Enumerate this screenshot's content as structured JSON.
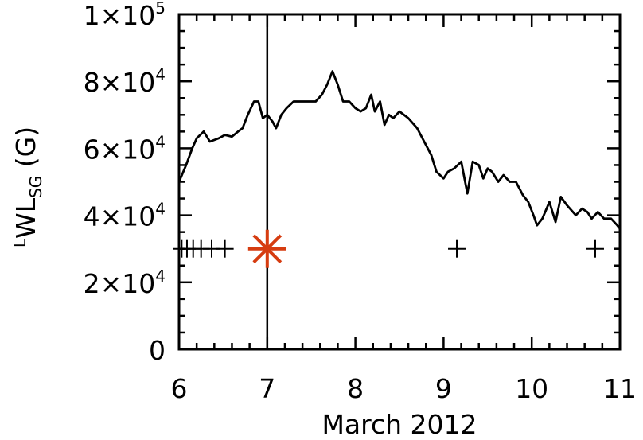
{
  "chart_data": {
    "type": "line",
    "xlabel": "March 2012",
    "ylabel": {
      "base": "WL",
      "pre_sup": "L",
      "sub": "SG",
      "unit": "(G)"
    },
    "xlim": [
      6,
      11
    ],
    "ylim": [
      0,
      100000
    ],
    "x_ticks": [
      {
        "value": 6,
        "label": "6"
      },
      {
        "value": 7,
        "label": "7"
      },
      {
        "value": 8,
        "label": "8"
      },
      {
        "value": 9,
        "label": "9"
      },
      {
        "value": 10,
        "label": "10"
      },
      {
        "value": 11,
        "label": "11"
      }
    ],
    "y_ticks": [
      {
        "value": 0,
        "mant": "0",
        "exp": ""
      },
      {
        "value": 20000,
        "mant": "2×10",
        "exp": "4"
      },
      {
        "value": 40000,
        "mant": "4×10",
        "exp": "4"
      },
      {
        "value": 60000,
        "mant": "6×10",
        "exp": "4"
      },
      {
        "value": 80000,
        "mant": "8×10",
        "exp": "4"
      },
      {
        "value": 100000,
        "mant": "1×10",
        "exp": "5"
      }
    ],
    "series": [
      {
        "color": "#000000",
        "points": [
          [
            6.0,
            50000
          ],
          [
            6.08,
            55000
          ],
          [
            6.15,
            60000
          ],
          [
            6.2,
            63000
          ],
          [
            6.28,
            65000
          ],
          [
            6.35,
            62000
          ],
          [
            6.45,
            63000
          ],
          [
            6.52,
            64000
          ],
          [
            6.6,
            63500
          ],
          [
            6.67,
            65000
          ],
          [
            6.72,
            66000
          ],
          [
            6.78,
            70000
          ],
          [
            6.85,
            74000
          ],
          [
            6.9,
            74000
          ],
          [
            6.95,
            69000
          ],
          [
            7.0,
            70000
          ],
          [
            7.06,
            68000
          ],
          [
            7.1,
            66000
          ],
          [
            7.16,
            70000
          ],
          [
            7.22,
            72000
          ],
          [
            7.3,
            74000
          ],
          [
            7.45,
            74000
          ],
          [
            7.55,
            74000
          ],
          [
            7.62,
            76000
          ],
          [
            7.68,
            79000
          ],
          [
            7.74,
            83000
          ],
          [
            7.8,
            79000
          ],
          [
            7.86,
            74000
          ],
          [
            7.93,
            74000
          ],
          [
            8.0,
            72000
          ],
          [
            8.06,
            71000
          ],
          [
            8.12,
            72000
          ],
          [
            8.18,
            76000
          ],
          [
            8.22,
            71000
          ],
          [
            8.28,
            74000
          ],
          [
            8.33,
            67000
          ],
          [
            8.38,
            70000
          ],
          [
            8.43,
            69000
          ],
          [
            8.5,
            71000
          ],
          [
            8.6,
            69000
          ],
          [
            8.7,
            66000
          ],
          [
            8.78,
            62000
          ],
          [
            8.86,
            58000
          ],
          [
            8.92,
            53000
          ],
          [
            9.0,
            51000
          ],
          [
            9.05,
            53000
          ],
          [
            9.12,
            54000
          ],
          [
            9.2,
            56000
          ],
          [
            9.27,
            46500
          ],
          [
            9.33,
            56000
          ],
          [
            9.4,
            55000
          ],
          [
            9.45,
            51000
          ],
          [
            9.5,
            54000
          ],
          [
            9.55,
            53000
          ],
          [
            9.62,
            50000
          ],
          [
            9.68,
            52000
          ],
          [
            9.75,
            50000
          ],
          [
            9.82,
            50000
          ],
          [
            9.9,
            46000
          ],
          [
            9.96,
            44000
          ],
          [
            10.02,
            40000
          ],
          [
            10.06,
            37000
          ],
          [
            10.12,
            39000
          ],
          [
            10.2,
            44000
          ],
          [
            10.27,
            38000
          ],
          [
            10.33,
            45500
          ],
          [
            10.4,
            43000
          ],
          [
            10.5,
            40000
          ],
          [
            10.57,
            42000
          ],
          [
            10.63,
            41000
          ],
          [
            10.68,
            39000
          ],
          [
            10.75,
            41000
          ],
          [
            10.82,
            39000
          ],
          [
            10.9,
            39000
          ],
          [
            10.97,
            37000
          ],
          [
            11.0,
            36000
          ]
        ]
      }
    ],
    "markers_plus": [
      {
        "x": 6.03,
        "y": 30000
      },
      {
        "x": 6.09,
        "y": 30000
      },
      {
        "x": 6.16,
        "y": 30000
      },
      {
        "x": 6.25,
        "y": 30000
      },
      {
        "x": 6.37,
        "y": 30000
      },
      {
        "x": 6.52,
        "y": 30000
      },
      {
        "x": 9.15,
        "y": 30000
      },
      {
        "x": 10.72,
        "y": 30000
      }
    ],
    "marker_asterisk": {
      "x": 7.0,
      "y": 30000,
      "color": "#d63c10"
    },
    "vertical_line": {
      "x": 7.0,
      "color": "#000000"
    },
    "grid": false
  }
}
